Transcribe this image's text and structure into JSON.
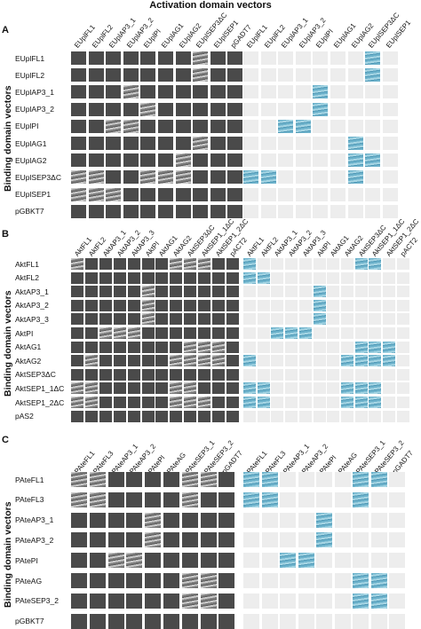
{
  "figure_title": "Activation domain vectors",
  "side_label": "Binding domain vectors",
  "colors": {
    "dark": "#4a4a4a",
    "light": "#ededed",
    "blue": "#6eb3cc"
  },
  "panels": [
    {
      "label": "A",
      "columns": [
        "EUplFL1",
        "EUplFL2",
        "EUplAP3_1",
        "EUplAP3_2",
        "EUplPI",
        "EUplAG1",
        "EUplAG2",
        "EUplSEP3ΔC",
        "EUplSEP1",
        "pGADT7"
      ],
      "right_columns": [
        "EUplFL1",
        "EUplFL2",
        "EUplAP3_1",
        "EUplAP3_2",
        "EUplPI",
        "EUplAG1",
        "EUplAG2",
        "EUplSEP3ΔC",
        "EUplSEP1"
      ],
      "rows": [
        "EUplFL1",
        "EUplFL2",
        "EUplAP3_1",
        "EUplAP3_2",
        "EUplPI",
        "EUplAG1",
        "EUplAG2",
        "EUplSEP3ΔC",
        "EUplSEP1",
        "pGBKT7"
      ],
      "growth": [
        [
          7,
          0
        ],
        [
          7,
          1
        ],
        [
          3,
          2
        ],
        [
          4,
          3
        ],
        [
          2,
          4
        ],
        [
          3,
          4
        ],
        [
          7,
          5
        ],
        [
          6,
          6
        ],
        [
          0,
          7
        ],
        [
          1,
          7
        ],
        [
          4,
          7
        ],
        [
          5,
          7
        ],
        [
          6,
          7
        ],
        [
          0,
          8
        ],
        [
          1,
          8
        ],
        [
          2,
          8
        ]
      ],
      "blue": [
        [
          7,
          0
        ],
        [
          7,
          1
        ],
        [
          4,
          2
        ],
        [
          4,
          3
        ],
        [
          2,
          4
        ],
        [
          3,
          4
        ],
        [
          6,
          5
        ],
        [
          6,
          6
        ],
        [
          7,
          6
        ],
        [
          0,
          7
        ],
        [
          1,
          7
        ],
        [
          6,
          7
        ]
      ]
    },
    {
      "label": "B",
      "columns": [
        "AktFL1",
        "AktFL2",
        "AktAP3_1",
        "AktAP3_2",
        "AktAP3_3",
        "AktPI",
        "AktAG1",
        "AktAG2",
        "AktSEP3ΔC",
        "AktSEP1_1ΔC",
        "AktSEP1_2ΔC",
        "pACT2"
      ],
      "right_columns": [
        "AktFL1",
        "AktFL2",
        "AktAP3_1",
        "AktAP3_2",
        "AktAP3_3",
        "AktPI",
        "AktAG1",
        "AktAG2",
        "AktSEP3ΔC",
        "AktSEP1_1ΔC",
        "AktSEP1_2ΔC",
        "pACT2"
      ],
      "rows": [
        "AktFL1",
        "AktFL2",
        "AktAP3_1",
        "AktAP3_2",
        "AktAP3_3",
        "AktPI",
        "AktAG1",
        "AktAG2",
        "AktSEP3ΔC",
        "AktSEP1_1ΔC",
        "AktSEP1_2ΔC",
        "pAS2"
      ],
      "growth": [
        [
          0,
          0
        ],
        [
          7,
          0
        ],
        [
          8,
          0
        ],
        [
          9,
          0
        ],
        [
          5,
          2
        ],
        [
          5,
          3
        ],
        [
          5,
          4
        ],
        [
          2,
          5
        ],
        [
          3,
          5
        ],
        [
          4,
          5
        ],
        [
          8,
          6
        ],
        [
          9,
          6
        ],
        [
          10,
          6
        ],
        [
          1,
          7
        ],
        [
          7,
          7
        ],
        [
          8,
          7
        ],
        [
          9,
          7
        ],
        [
          10,
          7
        ],
        [
          0,
          9
        ],
        [
          1,
          9
        ],
        [
          7,
          9
        ],
        [
          8,
          9
        ],
        [
          0,
          10
        ],
        [
          1,
          10
        ],
        [
          7,
          10
        ],
        [
          8,
          10
        ],
        [
          9,
          10
        ]
      ],
      "blue": [
        [
          0,
          0
        ],
        [
          8,
          0
        ],
        [
          9,
          0
        ],
        [
          0,
          1
        ],
        [
          1,
          1
        ],
        [
          5,
          2
        ],
        [
          5,
          3
        ],
        [
          5,
          4
        ],
        [
          2,
          5
        ],
        [
          3,
          5
        ],
        [
          4,
          5
        ],
        [
          8,
          6
        ],
        [
          9,
          6
        ],
        [
          10,
          6
        ],
        [
          0,
          7
        ],
        [
          7,
          7
        ],
        [
          8,
          7
        ],
        [
          9,
          7
        ],
        [
          10,
          7
        ],
        [
          0,
          9
        ],
        [
          1,
          9
        ],
        [
          7,
          9
        ],
        [
          8,
          9
        ],
        [
          9,
          9
        ],
        [
          0,
          10
        ],
        [
          1,
          10
        ],
        [
          7,
          10
        ],
        [
          8,
          10
        ],
        [
          9,
          10
        ]
      ]
    },
    {
      "label": "C",
      "columns": [
        "PAteFL1",
        "PAteFL3",
        "PAteAP3_1",
        "PAteAP3_2",
        "PAtePI",
        "PAteAG",
        "PAteSEP3_1",
        "PAteSEP3_2",
        "pGADT7"
      ],
      "right_columns": [
        "PAteFL1",
        "PAteFL3",
        "PAteAP3_1",
        "PAteAP3_2",
        "PAtePI",
        "PAteAG",
        "PAteSEP3_1",
        "PAteSEP3_2",
        "pGADT7"
      ],
      "rows": [
        "PAteFL1",
        "PAteFL3",
        "PAteAP3_1",
        "PAteAP3_2",
        "PAtePI",
        "PAteAG",
        "PAteSEP3_2",
        "pGBKT7"
      ],
      "growth": [
        [
          0,
          0
        ],
        [
          1,
          0
        ],
        [
          6,
          0
        ],
        [
          7,
          0
        ],
        [
          0,
          1
        ],
        [
          1,
          1
        ],
        [
          6,
          1
        ],
        [
          4,
          2
        ],
        [
          4,
          3
        ],
        [
          2,
          4
        ],
        [
          3,
          4
        ],
        [
          6,
          5
        ],
        [
          7,
          5
        ],
        [
          6,
          6
        ],
        [
          7,
          6
        ]
      ],
      "blue": [
        [
          0,
          0
        ],
        [
          1,
          0
        ],
        [
          6,
          0
        ],
        [
          7,
          0
        ],
        [
          0,
          1
        ],
        [
          1,
          1
        ],
        [
          6,
          1
        ],
        [
          4,
          2
        ],
        [
          4,
          3
        ],
        [
          2,
          4
        ],
        [
          3,
          4
        ],
        [
          6,
          5
        ],
        [
          7,
          5
        ],
        [
          6,
          6
        ],
        [
          7,
          6
        ]
      ]
    }
  ]
}
